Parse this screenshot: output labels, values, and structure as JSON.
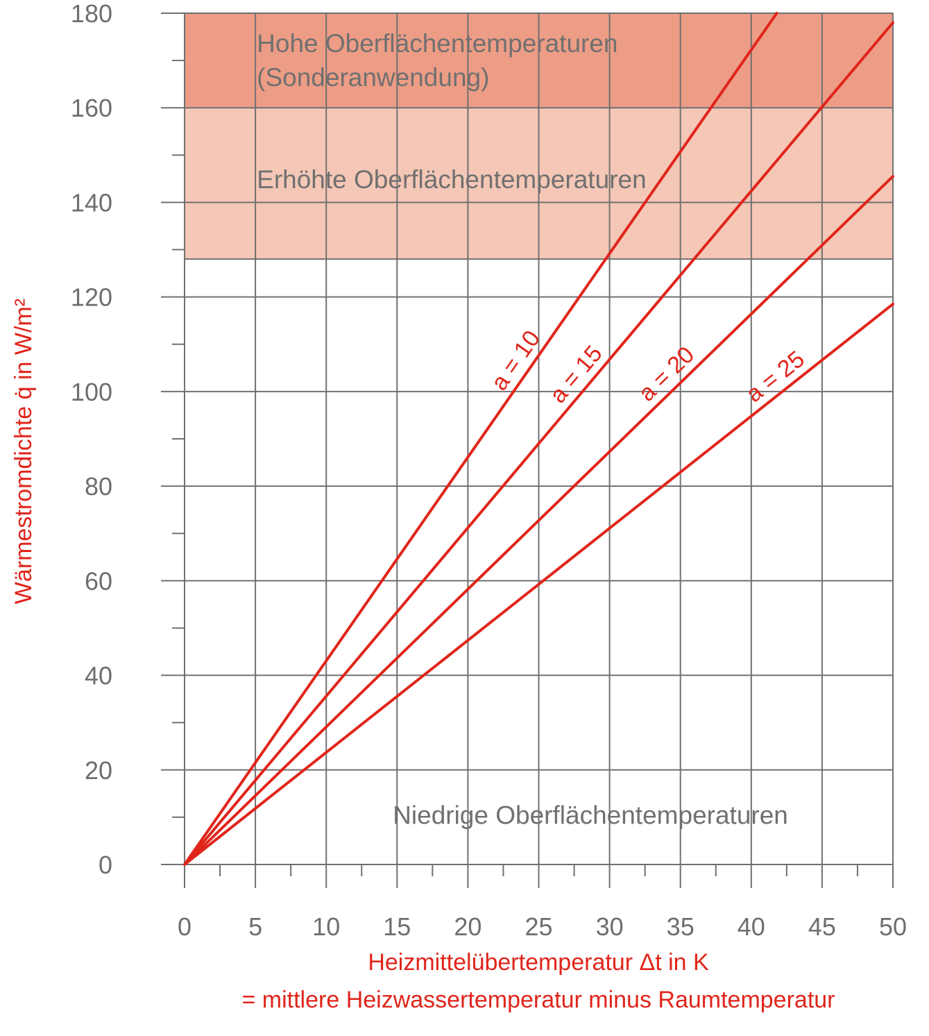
{
  "chart_data": {
    "type": "line",
    "xlabel_line1": "Heizmittelübertemperatur Δt in K",
    "xlabel_line2": "= mittlere Heizwassertemperatur minus Raumtemperatur",
    "ylabel": "Wärmestromdichte q̇ in W/m²",
    "xlim": [
      0,
      50
    ],
    "ylim": [
      0,
      180
    ],
    "x_ticks": [
      0,
      5,
      10,
      15,
      20,
      25,
      30,
      35,
      40,
      45,
      50
    ],
    "y_ticks": [
      0,
      20,
      40,
      60,
      80,
      100,
      120,
      140,
      160,
      180
    ],
    "grid": true,
    "regions": [
      {
        "label_lines": [
          "Hohe Oberflächentemperaturen",
          "(Sonderanwendung)"
        ],
        "y_from": 160,
        "y_to": 180,
        "color": "#ed9d86"
      },
      {
        "label_lines": [
          "Erhöhte Oberflächentemperaturen"
        ],
        "y_from": 128,
        "y_to": 160,
        "color": "#f5c7b6"
      },
      {
        "label_lines": [
          "Niedrige Oberflächentemperaturen"
        ],
        "y_from": 0,
        "y_to": 128,
        "color": "#ffffff"
      }
    ],
    "series": [
      {
        "name": "a = 10",
        "x": [
          0,
          41.8
        ],
        "y": [
          0,
          180
        ]
      },
      {
        "name": "a = 15",
        "x": [
          0,
          50
        ],
        "y": [
          0,
          178
        ]
      },
      {
        "name": "a = 20",
        "x": [
          0,
          50
        ],
        "y": [
          0,
          145.5
        ]
      },
      {
        "name": "a = 25",
        "x": [
          0,
          50
        ],
        "y": [
          0,
          118.5
        ]
      }
    ],
    "line_color": "#e0251b"
  }
}
